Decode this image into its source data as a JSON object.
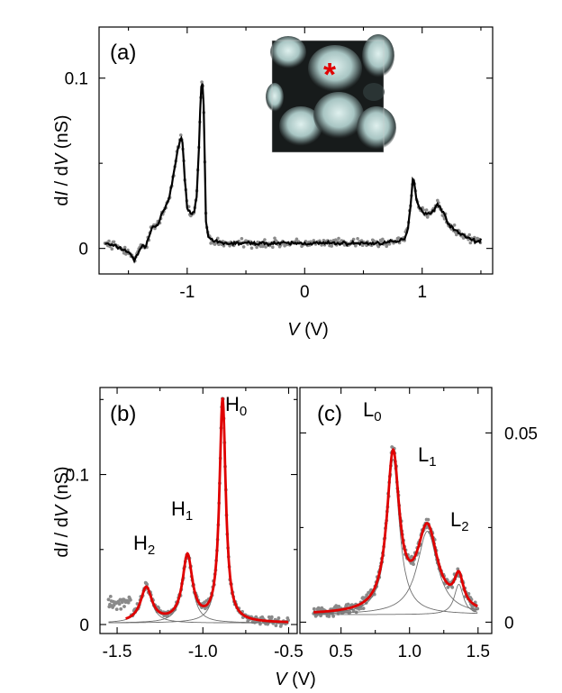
{
  "colors": {
    "points": "#8a8a8a",
    "fit_a": "#000000",
    "fit_bc": "#e00000",
    "components": "#707070",
    "marker": "#e00000"
  },
  "panels": {
    "a": {
      "label": "(a)",
      "ylabel_prefix": "d",
      "ylabel_i": "I",
      "ylabel_mid": " / d",
      "ylabel_v": "V",
      "ylabel_unit": " (nS)",
      "xlabel_v": "V",
      "xlabel_unit": " (V)",
      "xticks": [
        "-1",
        "0",
        "1"
      ],
      "yticks": [
        "0",
        "0.1"
      ],
      "inset_marker": "*"
    },
    "b": {
      "label": "(b)",
      "ylabel_prefix": "d",
      "ylabel_i": "I",
      "ylabel_mid": " / d",
      "ylabel_v": "V",
      "ylabel_unit": " (nS)",
      "xticks": [
        "-1.5",
        "-1.0",
        "-0.5"
      ],
      "yticks": [
        "0",
        "0.1"
      ],
      "peaks": [
        {
          "base": "H",
          "sub": "0"
        },
        {
          "base": "H",
          "sub": "1"
        },
        {
          "base": "H",
          "sub": "2"
        }
      ]
    },
    "c": {
      "label": "(c)",
      "xticks": [
        "0.5",
        "1.0",
        "1.5"
      ],
      "yticks": [
        "0",
        "0.05"
      ],
      "peaks": [
        {
          "base": "L",
          "sub": "0"
        },
        {
          "base": "L",
          "sub": "1"
        },
        {
          "base": "L",
          "sub": "2"
        }
      ]
    },
    "bottom_xlabel_v": "V",
    "bottom_xlabel_unit": " (V)"
  },
  "chart_data": [
    {
      "type": "line",
      "title": "(a)",
      "xlabel": "V (V)",
      "ylabel": "dI / dV (nS)",
      "xlim": [
        -1.75,
        1.6
      ],
      "ylim": [
        -0.015,
        0.13
      ],
      "series": [
        {
          "x": [
            -1.7,
            -1.6,
            -1.5,
            -1.45,
            -1.4,
            -1.35,
            -1.3,
            -1.25,
            -1.2,
            -1.15,
            -1.1,
            -1.08,
            -1.06,
            -1.05,
            -1.04,
            -1.02,
            -1.0,
            -0.98,
            -0.96,
            -0.94,
            -0.92,
            -0.9,
            -0.89,
            -0.88,
            -0.87,
            -0.86,
            -0.85,
            -0.84,
            -0.82,
            -0.8,
            -0.78,
            -0.75,
            -0.7,
            -0.5,
            -0.2,
            0.0,
            0.3,
            0.6,
            0.8,
            0.85,
            0.88,
            0.9,
            0.92,
            0.93,
            0.95,
            0.97,
            1.0,
            1.05,
            1.1,
            1.13,
            1.15,
            1.2,
            1.25,
            1.3,
            1.35,
            1.4,
            1.45,
            1.5
          ],
          "y": [
            0.003,
            0.001,
            -0.002,
            -0.007,
            0.0,
            0.002,
            0.012,
            0.014,
            0.022,
            0.03,
            0.05,
            0.058,
            0.064,
            0.065,
            0.062,
            0.04,
            0.025,
            0.022,
            0.02,
            0.022,
            0.03,
            0.06,
            0.08,
            0.095,
            0.098,
            0.085,
            0.05,
            0.015,
            0.007,
            0.005,
            0.004,
            0.004,
            0.003,
            0.003,
            0.003,
            0.003,
            0.003,
            0.003,
            0.004,
            0.006,
            0.012,
            0.025,
            0.04,
            0.04,
            0.03,
            0.025,
            0.022,
            0.02,
            0.022,
            0.026,
            0.025,
            0.018,
            0.012,
            0.01,
            0.008,
            0.006,
            0.004,
            0.005
          ]
        }
      ]
    },
    {
      "type": "line",
      "title": "(b)",
      "xlabel": "V (V)",
      "ylabel": "dI / dV (nS)",
      "xlim": [
        -1.6,
        -0.45
      ],
      "ylim": [
        -0.006,
        0.158
      ],
      "series": [
        {
          "name": "H0",
          "x": [
            -0.885
          ],
          "y": [
            0.152
          ]
        },
        {
          "name": "H1",
          "x": [
            -1.09
          ],
          "y": [
            0.049
          ]
        },
        {
          "name": "H2",
          "x": [
            -1.33
          ],
          "y": [
            0.026
          ]
        }
      ]
    },
    {
      "type": "line",
      "title": "(c)",
      "xlabel": "V (V)",
      "ylabel": "dI / dV (nS)",
      "xlim": [
        0.2,
        1.6
      ],
      "ylim": [
        -0.003,
        0.062
      ],
      "series": [
        {
          "name": "L0",
          "x": [
            0.88
          ],
          "y": [
            0.043
          ]
        },
        {
          "name": "L1",
          "x": [
            1.13
          ],
          "y": [
            0.027
          ]
        },
        {
          "name": "L2",
          "x": [
            1.36
          ],
          "y": [
            0.012
          ]
        }
      ]
    }
  ]
}
